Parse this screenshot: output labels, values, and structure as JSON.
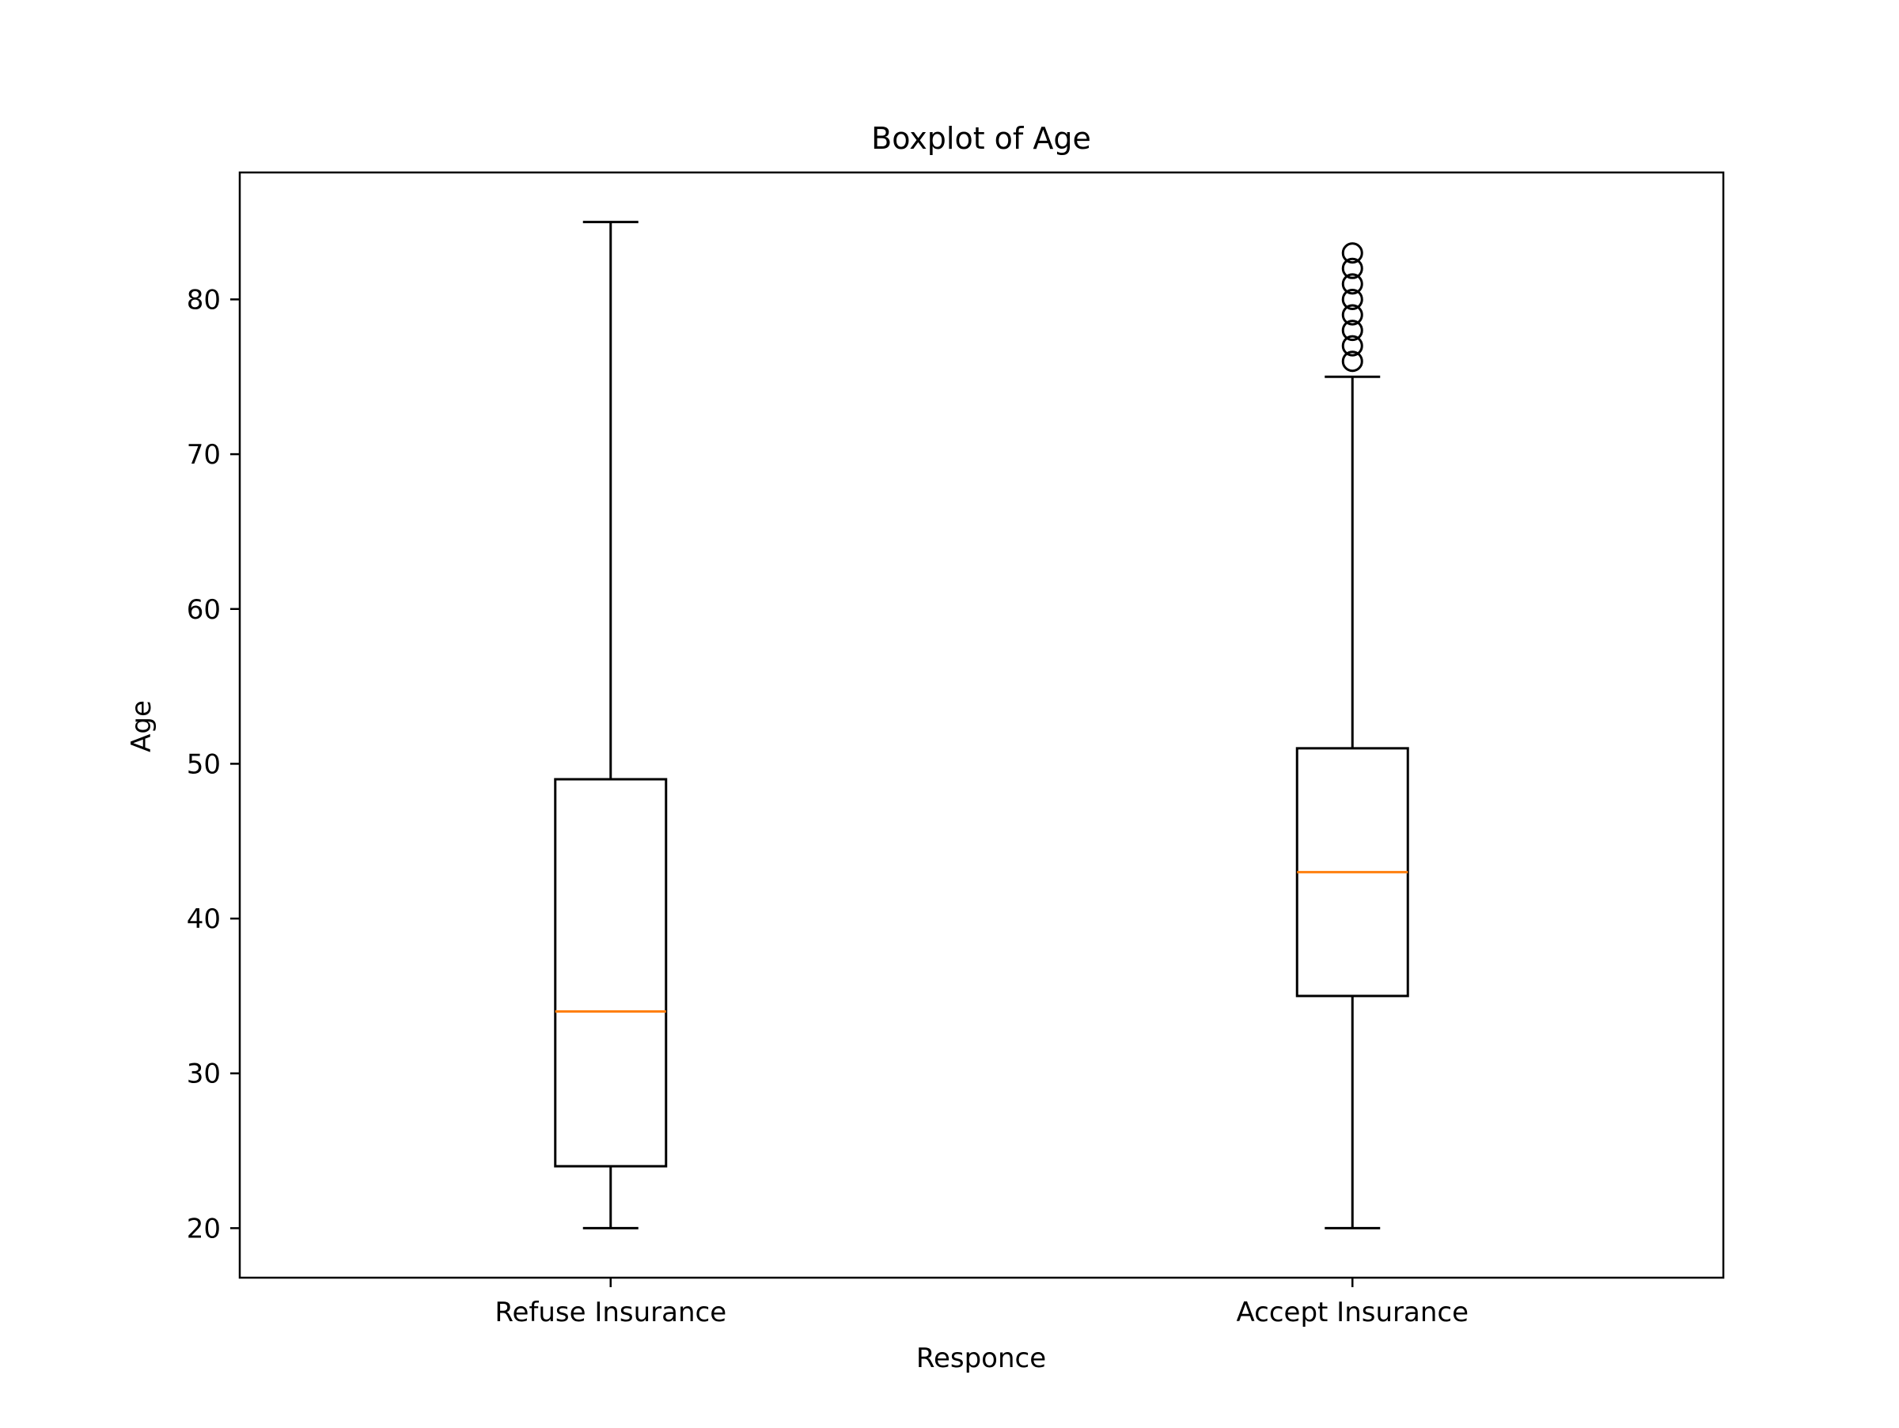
{
  "chart_data": {
    "type": "boxplot",
    "title": "Boxplot of Age",
    "xlabel": "Responce",
    "ylabel": "Age",
    "ylim": [
      16.8,
      88.2
    ],
    "yticks": [
      20,
      30,
      40,
      50,
      60,
      70,
      80
    ],
    "categories": [
      "Refuse Insurance",
      "Accept Insurance"
    ],
    "boxes": [
      {
        "category": "Refuse Insurance",
        "whisker_low": 20,
        "q1": 24,
        "median": 34,
        "q3": 49,
        "whisker_high": 85,
        "outliers": []
      },
      {
        "category": "Accept Insurance",
        "whisker_low": 20,
        "q1": 35,
        "median": 43,
        "q3": 51,
        "whisker_high": 75,
        "outliers": [
          76,
          77,
          78,
          79,
          80,
          81,
          82,
          83
        ]
      }
    ],
    "colors": {
      "box": "#000000",
      "median": "#ff7f0e",
      "outlier": "#000000"
    }
  }
}
